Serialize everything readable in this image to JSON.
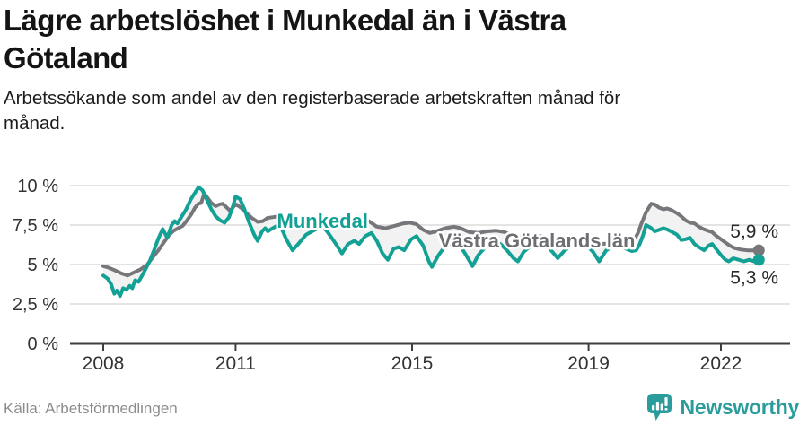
{
  "header": {
    "title_lines": [
      "Lägre arbetslöshet i Munkedal än i Västra",
      "Götaland"
    ],
    "subtitle_lines": [
      "Arbetssökande som andel av den registerbaserade arbetskraften månad för",
      "månad."
    ]
  },
  "footer": {
    "source": "Källa: Arbetsförmedlingen",
    "brand": "Newsworthy",
    "brand_color": "#2b9c9c"
  },
  "chart_data": {
    "type": "line",
    "title": "",
    "xlabel": "",
    "ylabel": "",
    "x_range": [
      2008.0,
      2022.9
    ],
    "ylim": [
      0,
      10
    ],
    "grid": true,
    "legend_position": "inline-labels",
    "band_fill": "#f2f2f2",
    "axis_color": "#3e3e3e",
    "grid_color": "#dcdcdc",
    "tick_label_color": "#333333",
    "end_label_color": "#2a2a2a",
    "y_ticks": [
      {
        "v": 0,
        "label": "0 %"
      },
      {
        "v": 2.5,
        "label": "2,5 %"
      },
      {
        "v": 5,
        "label": "5 %"
      },
      {
        "v": 7.5,
        "label": "7,5 %"
      },
      {
        "v": 10,
        "label": "10 %"
      }
    ],
    "x_ticks": [
      {
        "v": 2008,
        "label": "2008"
      },
      {
        "v": 2011,
        "label": "2011"
      },
      {
        "v": 2015,
        "label": "2015"
      },
      {
        "v": 2019,
        "label": "2019"
      },
      {
        "v": 2022,
        "label": "2022"
      }
    ],
    "series": [
      {
        "name": "Västra Götalands län",
        "color": "#76767b",
        "label_color": "#6d6d72",
        "label_pos": {
          "x": 2017.83,
          "y": 6.53
        },
        "end_label": "5,9 %",
        "end_label_dy": -14,
        "points": [
          [
            2008.0,
            4.9
          ],
          [
            2008.12,
            4.8
          ],
          [
            2008.25,
            4.65
          ],
          [
            2008.4,
            4.45
          ],
          [
            2008.55,
            4.3
          ],
          [
            2008.7,
            4.5
          ],
          [
            2008.85,
            4.7
          ],
          [
            2009.0,
            5.0
          ],
          [
            2009.12,
            5.45
          ],
          [
            2009.25,
            5.9
          ],
          [
            2009.35,
            6.3
          ],
          [
            2009.5,
            6.9
          ],
          [
            2009.6,
            7.15
          ],
          [
            2009.7,
            7.3
          ],
          [
            2009.8,
            7.45
          ],
          [
            2009.9,
            7.8
          ],
          [
            2010.0,
            8.2
          ],
          [
            2010.08,
            8.6
          ],
          [
            2010.16,
            8.85
          ],
          [
            2010.22,
            8.9
          ],
          [
            2010.29,
            9.5
          ],
          [
            2010.37,
            9.2
          ],
          [
            2010.45,
            8.9
          ],
          [
            2010.55,
            8.7
          ],
          [
            2010.63,
            8.8
          ],
          [
            2010.71,
            8.85
          ],
          [
            2010.8,
            8.6
          ],
          [
            2010.88,
            8.4
          ],
          [
            2010.96,
            8.7
          ],
          [
            2011.02,
            8.8
          ],
          [
            2011.12,
            8.6
          ],
          [
            2011.25,
            8.25
          ],
          [
            2011.37,
            7.95
          ],
          [
            2011.5,
            7.7
          ],
          [
            2011.62,
            7.75
          ],
          [
            2011.72,
            7.95
          ],
          [
            2011.85,
            8.0
          ],
          [
            2011.95,
            8.05
          ],
          [
            2012.1,
            8.0
          ],
          [
            2012.3,
            7.75
          ],
          [
            2012.5,
            7.8
          ],
          [
            2012.7,
            7.9
          ],
          [
            2012.9,
            8.0
          ],
          [
            2013.1,
            7.95
          ],
          [
            2013.3,
            7.75
          ],
          [
            2013.5,
            7.7
          ],
          [
            2013.7,
            7.8
          ],
          [
            2013.9,
            7.85
          ],
          [
            2014.02,
            7.75
          ],
          [
            2014.2,
            7.4
          ],
          [
            2014.4,
            7.3
          ],
          [
            2014.6,
            7.45
          ],
          [
            2014.8,
            7.6
          ],
          [
            2014.95,
            7.65
          ],
          [
            2015.1,
            7.55
          ],
          [
            2015.25,
            7.2
          ],
          [
            2015.4,
            7.0
          ],
          [
            2015.55,
            7.1
          ],
          [
            2015.75,
            7.3
          ],
          [
            2015.95,
            7.4
          ],
          [
            2016.1,
            7.3
          ],
          [
            2016.3,
            7.05
          ],
          [
            2016.5,
            7.0
          ],
          [
            2016.7,
            7.1
          ],
          [
            2016.9,
            7.15
          ],
          [
            2017.1,
            7.05
          ],
          [
            2017.3,
            6.8
          ],
          [
            2017.5,
            6.7
          ],
          [
            2017.7,
            6.75
          ],
          [
            2017.9,
            6.8
          ],
          [
            2018.1,
            6.7
          ],
          [
            2018.3,
            6.5
          ],
          [
            2018.5,
            6.4
          ],
          [
            2018.7,
            6.45
          ],
          [
            2018.9,
            6.5
          ],
          [
            2019.1,
            6.45
          ],
          [
            2019.3,
            6.3
          ],
          [
            2019.5,
            6.35
          ],
          [
            2019.7,
            6.4
          ],
          [
            2019.9,
            6.5
          ],
          [
            2020.04,
            6.6
          ],
          [
            2020.12,
            7.0
          ],
          [
            2020.2,
            7.6
          ],
          [
            2020.3,
            8.3
          ],
          [
            2020.42,
            8.85
          ],
          [
            2020.5,
            8.8
          ],
          [
            2020.6,
            8.6
          ],
          [
            2020.7,
            8.5
          ],
          [
            2020.78,
            8.55
          ],
          [
            2020.88,
            8.45
          ],
          [
            2021.0,
            8.25
          ],
          [
            2021.1,
            8.05
          ],
          [
            2021.2,
            7.8
          ],
          [
            2021.3,
            7.65
          ],
          [
            2021.4,
            7.6
          ],
          [
            2021.5,
            7.4
          ],
          [
            2021.6,
            7.25
          ],
          [
            2021.7,
            7.15
          ],
          [
            2021.8,
            7.05
          ],
          [
            2021.9,
            6.8
          ],
          [
            2022.0,
            6.6
          ],
          [
            2022.1,
            6.4
          ],
          [
            2022.2,
            6.2
          ],
          [
            2022.3,
            6.05
          ],
          [
            2022.45,
            5.95
          ],
          [
            2022.6,
            5.9
          ],
          [
            2022.72,
            5.9
          ],
          [
            2022.86,
            5.9
          ]
        ]
      },
      {
        "name": "Munkedal",
        "color": "#14a195",
        "label_color": "#14a195",
        "label_pos": {
          "x": 2012.97,
          "y": 7.78
        },
        "end_label": "5,3 %",
        "end_label_dy": 27,
        "points": [
          [
            2008.0,
            4.3
          ],
          [
            2008.1,
            4.1
          ],
          [
            2008.18,
            3.75
          ],
          [
            2008.25,
            3.15
          ],
          [
            2008.31,
            3.35
          ],
          [
            2008.38,
            3.0
          ],
          [
            2008.45,
            3.5
          ],
          [
            2008.52,
            3.4
          ],
          [
            2008.6,
            3.65
          ],
          [
            2008.66,
            3.5
          ],
          [
            2008.72,
            4.0
          ],
          [
            2008.8,
            3.9
          ],
          [
            2008.92,
            4.5
          ],
          [
            2009.05,
            5.2
          ],
          [
            2009.15,
            5.9
          ],
          [
            2009.25,
            6.65
          ],
          [
            2009.35,
            7.25
          ],
          [
            2009.45,
            6.7
          ],
          [
            2009.55,
            7.5
          ],
          [
            2009.62,
            7.75
          ],
          [
            2009.68,
            7.6
          ],
          [
            2009.78,
            8.05
          ],
          [
            2009.88,
            8.5
          ],
          [
            2009.98,
            9.1
          ],
          [
            2010.08,
            9.55
          ],
          [
            2010.16,
            9.9
          ],
          [
            2010.25,
            9.7
          ],
          [
            2010.35,
            9.1
          ],
          [
            2010.45,
            8.5
          ],
          [
            2010.55,
            8.05
          ],
          [
            2010.65,
            7.8
          ],
          [
            2010.75,
            7.65
          ],
          [
            2010.85,
            8.0
          ],
          [
            2010.93,
            8.6
          ],
          [
            2011.0,
            9.3
          ],
          [
            2011.1,
            9.15
          ],
          [
            2011.2,
            8.5
          ],
          [
            2011.3,
            7.7
          ],
          [
            2011.42,
            6.9
          ],
          [
            2011.5,
            6.5
          ],
          [
            2011.6,
            7.1
          ],
          [
            2011.67,
            7.3
          ],
          [
            2011.73,
            7.1
          ],
          [
            2011.84,
            7.3
          ],
          [
            2011.94,
            7.45
          ],
          [
            2012.04,
            7.3
          ],
          [
            2012.15,
            6.6
          ],
          [
            2012.29,
            5.9
          ],
          [
            2012.42,
            6.3
          ],
          [
            2012.6,
            6.9
          ],
          [
            2012.8,
            7.2
          ],
          [
            2012.96,
            7.5
          ],
          [
            2013.1,
            7.0
          ],
          [
            2013.25,
            6.4
          ],
          [
            2013.41,
            5.7
          ],
          [
            2013.55,
            6.3
          ],
          [
            2013.69,
            6.5
          ],
          [
            2013.8,
            6.3
          ],
          [
            2013.94,
            6.8
          ],
          [
            2014.08,
            7.0
          ],
          [
            2014.2,
            6.5
          ],
          [
            2014.33,
            5.7
          ],
          [
            2014.45,
            5.3
          ],
          [
            2014.58,
            6.0
          ],
          [
            2014.7,
            6.1
          ],
          [
            2014.82,
            5.9
          ],
          [
            2014.98,
            6.6
          ],
          [
            2015.1,
            6.8
          ],
          [
            2015.25,
            6.2
          ],
          [
            2015.38,
            5.2
          ],
          [
            2015.45,
            4.85
          ],
          [
            2015.6,
            5.6
          ],
          [
            2015.76,
            6.2
          ],
          [
            2015.92,
            6.4
          ],
          [
            2016.06,
            6.3
          ],
          [
            2016.2,
            5.7
          ],
          [
            2016.37,
            4.9
          ],
          [
            2016.5,
            5.6
          ],
          [
            2016.66,
            6.1
          ],
          [
            2016.84,
            6.3
          ],
          [
            2017.0,
            6.3
          ],
          [
            2017.15,
            5.9
          ],
          [
            2017.3,
            5.4
          ],
          [
            2017.4,
            5.2
          ],
          [
            2017.53,
            5.8
          ],
          [
            2017.7,
            6.2
          ],
          [
            2017.86,
            6.4
          ],
          [
            2018.02,
            6.3
          ],
          [
            2018.18,
            5.8
          ],
          [
            2018.3,
            5.4
          ],
          [
            2018.46,
            5.9
          ],
          [
            2018.63,
            6.2
          ],
          [
            2018.8,
            6.3
          ],
          [
            2018.96,
            6.2
          ],
          [
            2019.1,
            5.8
          ],
          [
            2019.24,
            5.2
          ],
          [
            2019.4,
            5.9
          ],
          [
            2019.53,
            6.1
          ],
          [
            2019.68,
            6.2
          ],
          [
            2019.85,
            6.0
          ],
          [
            2019.98,
            5.85
          ],
          [
            2020.08,
            5.9
          ],
          [
            2020.16,
            6.3
          ],
          [
            2020.24,
            6.9
          ],
          [
            2020.3,
            7.5
          ],
          [
            2020.4,
            7.35
          ],
          [
            2020.5,
            7.1
          ],
          [
            2020.6,
            7.2
          ],
          [
            2020.7,
            7.3
          ],
          [
            2020.8,
            7.2
          ],
          [
            2020.9,
            7.05
          ],
          [
            2021.0,
            6.9
          ],
          [
            2021.1,
            6.55
          ],
          [
            2021.2,
            6.6
          ],
          [
            2021.3,
            6.7
          ],
          [
            2021.4,
            6.3
          ],
          [
            2021.5,
            6.1
          ],
          [
            2021.62,
            5.9
          ],
          [
            2021.72,
            6.2
          ],
          [
            2021.8,
            6.3
          ],
          [
            2021.9,
            5.95
          ],
          [
            2022.0,
            5.6
          ],
          [
            2022.1,
            5.3
          ],
          [
            2022.18,
            5.2
          ],
          [
            2022.28,
            5.4
          ],
          [
            2022.4,
            5.3
          ],
          [
            2022.52,
            5.2
          ],
          [
            2022.64,
            5.3
          ],
          [
            2022.75,
            5.2
          ],
          [
            2022.86,
            5.3
          ]
        ]
      }
    ]
  }
}
